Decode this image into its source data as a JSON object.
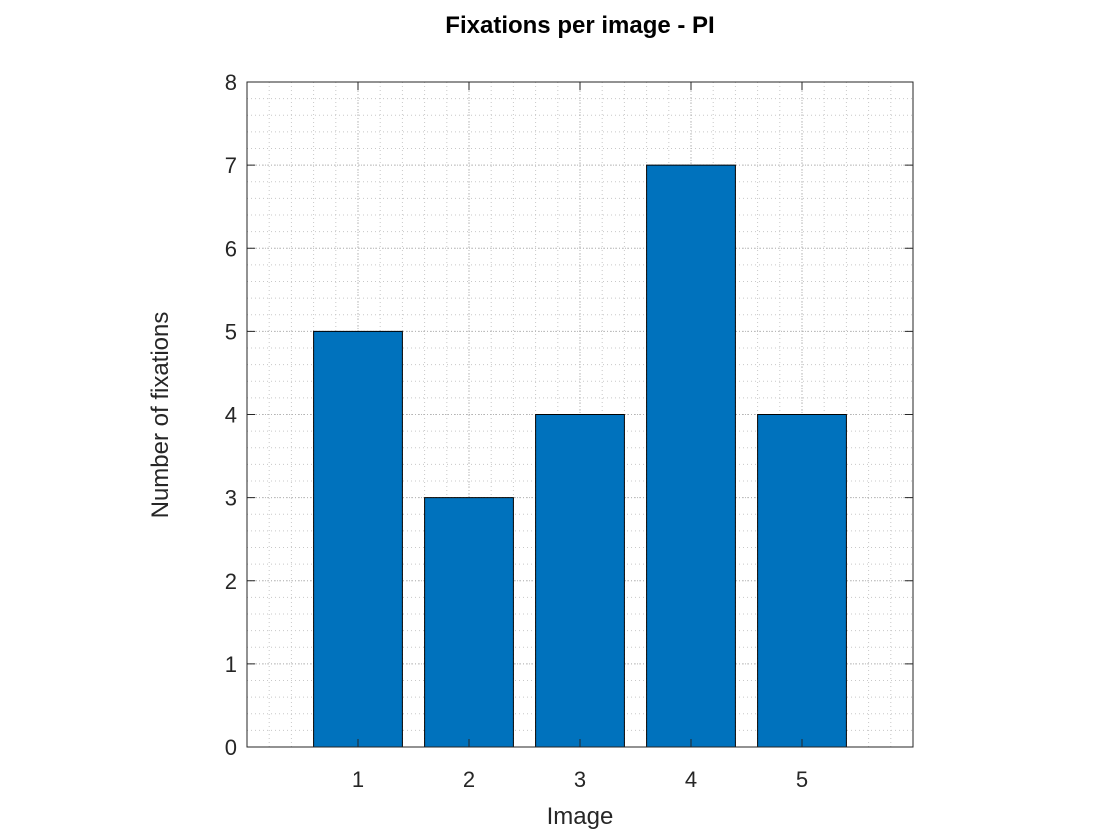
{
  "chart_data": {
    "type": "bar",
    "title": "Fixations per image - PI",
    "xlabel": "Image",
    "ylabel": "Number of fixations",
    "categories": [
      "1",
      "2",
      "3",
      "4",
      "5"
    ],
    "values": [
      5,
      3,
      4,
      7,
      4
    ],
    "xlim": [
      0,
      6
    ],
    "ylim": [
      0,
      8
    ],
    "yticks": [
      "0",
      "1",
      "2",
      "3",
      "4",
      "5",
      "6",
      "7",
      "8"
    ],
    "grid": true,
    "minor_grid": true,
    "legend": false,
    "colors": {
      "bar_fill": "#0072BD",
      "bar_edge": "#000000",
      "axis": "#262626",
      "grid_minor": "#c8c8c8",
      "grid_major": "#b4b4b4"
    }
  }
}
